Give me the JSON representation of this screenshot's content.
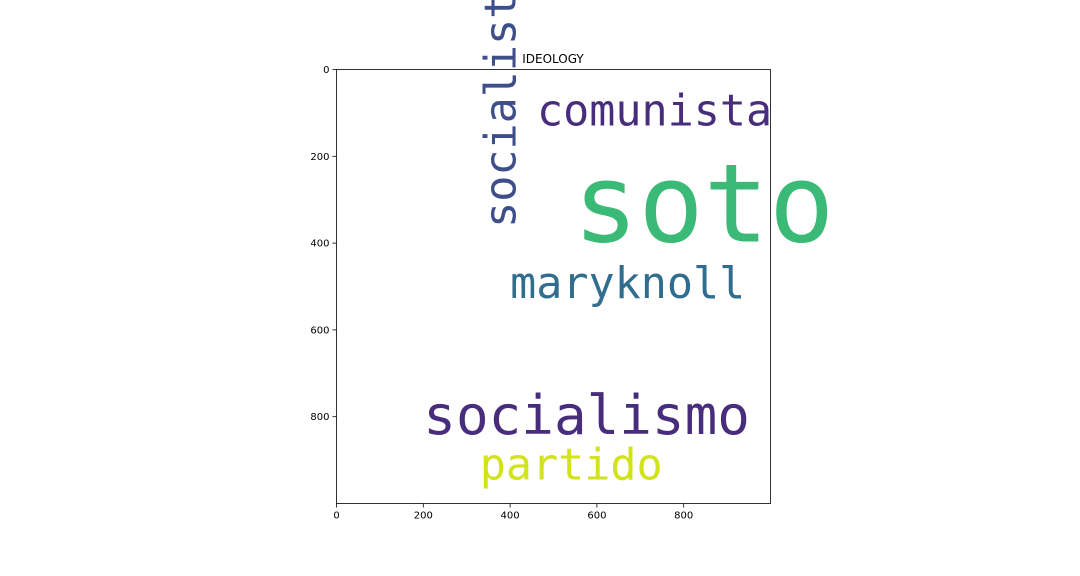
{
  "chart_data": {
    "type": "wordcloud",
    "title": "IDEOLOGY",
    "x_ticks": [
      "0",
      "200",
      "400",
      "600",
      "800"
    ],
    "y_ticks": [
      "0",
      "200",
      "400",
      "600",
      "800"
    ],
    "xlim": [
      0,
      1000
    ],
    "ylim": [
      1000,
      0
    ],
    "words": [
      {
        "text": "soto",
        "x": 545,
        "y": 210,
        "size": 250,
        "color": "#3bba77",
        "rotation": 0
      },
      {
        "text": "comunista",
        "x": 462,
        "y": 57,
        "size": 100,
        "color": "#472d7b",
        "rotation": 0
      },
      {
        "text": "socialista",
        "x": 340,
        "y": 365,
        "size": 100,
        "color": "#3d4e8a",
        "rotation": -90
      },
      {
        "text": "maryknoll",
        "x": 400,
        "y": 455,
        "size": 100,
        "color": "#306d8e",
        "rotation": 0
      },
      {
        "text": "socialismo",
        "x": 200,
        "y": 748,
        "size": 125,
        "color": "#472d7b",
        "rotation": 0
      },
      {
        "text": "partido",
        "x": 330,
        "y": 873,
        "size": 100,
        "color": "#d2e21b",
        "rotation": 0
      }
    ]
  }
}
